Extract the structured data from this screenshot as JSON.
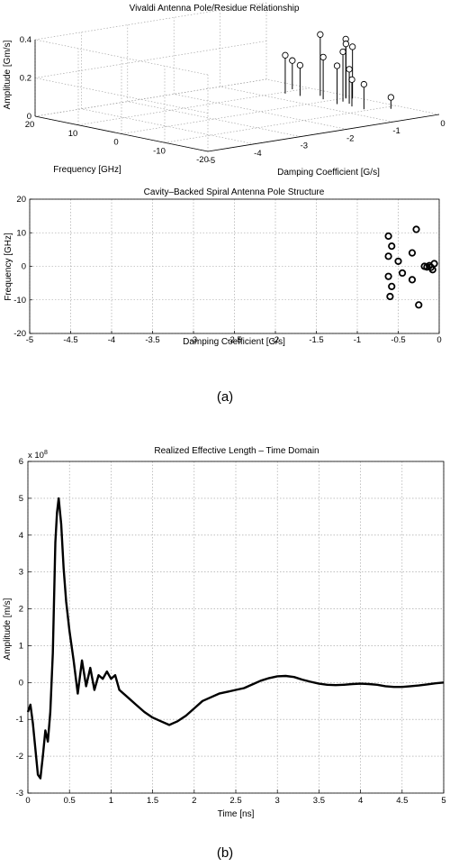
{
  "captions": {
    "a": "(a)",
    "b": "(b)"
  },
  "chart_data": [
    {
      "type": "scatter3d-stem",
      "title": "Vivaldi Antenna Pole/Residue Relationship",
      "xlabel": "Damping Coefficient [G/s]",
      "ylabel": "Frequency [GHz]",
      "zlabel": "Amplitude [Gm/s]",
      "xlim": [
        -5,
        0
      ],
      "ylim": [
        -20,
        20
      ],
      "zlim": [
        0,
        0.4
      ],
      "xticks": [
        "-5",
        "-4",
        "-3",
        "-2",
        "-1",
        "0"
      ],
      "yticks": [
        "-20",
        "-10",
        "0",
        "10",
        "20"
      ],
      "zticks": [
        "0",
        "0.2",
        "0.4"
      ],
      "grid": true,
      "points": [
        {
          "x": -0.62,
          "y": 9.0,
          "z": 0.2
        },
        {
          "x": -0.58,
          "y": 6.0,
          "z": 0.16
        },
        {
          "x": -0.5,
          "y": 1.5,
          "z": 0.22
        },
        {
          "x": -0.4,
          "y": -2.0,
          "z": 0.26
        },
        {
          "x": -0.33,
          "y": 4.0,
          "z": 0.32
        },
        {
          "x": -0.28,
          "y": 11.0,
          "z": 0.15
        },
        {
          "x": -0.62,
          "y": -3.0,
          "z": 0.2
        },
        {
          "x": -0.18,
          "y": -0.3,
          "z": 0.31
        },
        {
          "x": -0.12,
          "y": 0.3,
          "z": 0.28
        },
        {
          "x": -0.1,
          "y": -1.0,
          "z": 0.27
        },
        {
          "x": -0.58,
          "y": -6.0,
          "z": 0.14
        },
        {
          "x": -0.45,
          "y": -4.0,
          "z": 0.18
        },
        {
          "x": -0.6,
          "y": -9.0,
          "z": 0.13
        },
        {
          "x": -0.25,
          "y": -11.5,
          "z": 0.06
        }
      ]
    },
    {
      "type": "scatter",
      "title": "Cavity–Backed Spiral Antenna Pole Structure",
      "xlabel": "Damping Coefficient [G/s]",
      "ylabel": "Frequency [GHz]",
      "xlim": [
        -5,
        0
      ],
      "ylim": [
        -20,
        20
      ],
      "xticks": [
        "-5",
        "-4.5",
        "-4",
        "-3.5",
        "-3",
        "-2.5",
        "-2",
        "-1.5",
        "-1",
        "-0.5",
        "0"
      ],
      "yticks": [
        "20",
        "10",
        "0",
        "-10",
        "-20"
      ],
      "grid": true,
      "x": [
        -0.62,
        -0.58,
        -0.62,
        -0.5,
        -0.33,
        -0.28,
        -0.18,
        -0.12,
        -0.1,
        -0.06,
        -0.62,
        -0.45,
        -0.58,
        -0.6,
        -0.33,
        -0.25,
        -0.15,
        -0.08
      ],
      "y": [
        9.0,
        6.0,
        3.0,
        1.5,
        4.0,
        11.0,
        0.0,
        0.2,
        -0.3,
        0.8,
        -3.0,
        -2.0,
        -6.0,
        -9.0,
        -4.0,
        -11.5,
        -0.2,
        -1.0
      ]
    },
    {
      "type": "line",
      "title": "Realized Effective Length – Time Domain",
      "xlabel": "Time [ns]",
      "ylabel": "Amplitude [m/s]",
      "exponent_label": "x 10",
      "exponent_power": "8",
      "xlim": [
        0,
        5
      ],
      "ylim": [
        -3,
        6
      ],
      "xticks": [
        "0",
        "0.5",
        "1",
        "1.5",
        "2",
        "2.5",
        "3",
        "3.5",
        "4",
        "4.5",
        "5"
      ],
      "yticks": [
        "6",
        "5",
        "4",
        "3",
        "2",
        "1",
        "0",
        "-1",
        "-2",
        "-3"
      ],
      "grid": true,
      "x": [
        0.0,
        0.03,
        0.06,
        0.09,
        0.12,
        0.15,
        0.18,
        0.21,
        0.24,
        0.27,
        0.3,
        0.33,
        0.35,
        0.37,
        0.4,
        0.43,
        0.46,
        0.5,
        0.55,
        0.6,
        0.65,
        0.7,
        0.75,
        0.8,
        0.85,
        0.9,
        0.95,
        1.0,
        1.05,
        1.1,
        1.2,
        1.3,
        1.4,
        1.5,
        1.6,
        1.7,
        1.75,
        1.8,
        1.9,
        2.0,
        2.1,
        2.2,
        2.3,
        2.4,
        2.5,
        2.6,
        2.7,
        2.8,
        2.9,
        3.0,
        3.1,
        3.2,
        3.3,
        3.4,
        3.5,
        3.6,
        3.7,
        3.8,
        3.9,
        4.0,
        4.1,
        4.2,
        4.3,
        4.4,
        4.5,
        4.6,
        4.7,
        4.8,
        4.9,
        5.0
      ],
      "y": [
        -0.8,
        -0.6,
        -1.1,
        -1.8,
        -2.5,
        -2.6,
        -2.0,
        -1.3,
        -1.6,
        -0.8,
        0.8,
        3.8,
        4.6,
        5.0,
        4.3,
        3.1,
        2.2,
        1.4,
        0.6,
        -0.3,
        0.6,
        -0.1,
        0.4,
        -0.2,
        0.2,
        0.1,
        0.3,
        0.1,
        0.2,
        -0.2,
        -0.4,
        -0.6,
        -0.8,
        -0.95,
        -1.05,
        -1.15,
        -1.1,
        -1.05,
        -0.9,
        -0.7,
        -0.5,
        -0.4,
        -0.3,
        -0.25,
        -0.2,
        -0.15,
        -0.05,
        0.05,
        0.12,
        0.17,
        0.18,
        0.15,
        0.08,
        0.02,
        -0.03,
        -0.06,
        -0.07,
        -0.06,
        -0.04,
        -0.03,
        -0.04,
        -0.06,
        -0.1,
        -0.12,
        -0.12,
        -0.1,
        -0.08,
        -0.05,
        -0.02,
        0.0
      ]
    }
  ]
}
